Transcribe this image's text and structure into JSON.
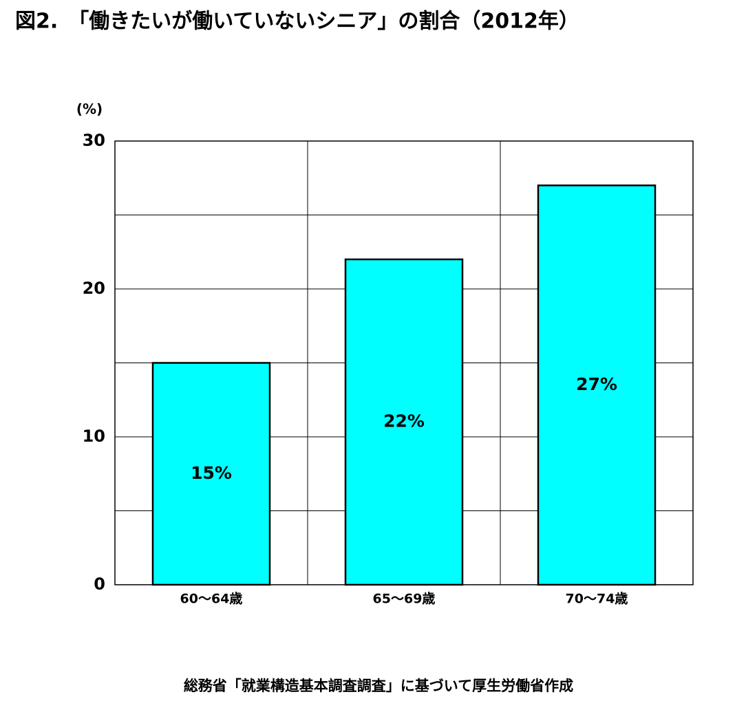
{
  "chart_data": {
    "type": "bar",
    "title": "図2.　「働きたいが働いていないシニア」の割合（2012年）",
    "y_axis_label": "(%)",
    "source": "総務省「就業構造基本調査調査」に基づいて厚生労働省作成",
    "categories": [
      "60～64歳",
      "65～69歳",
      "70～74歳"
    ],
    "values": [
      15,
      22,
      27
    ],
    "value_labels": [
      "15%",
      "22%",
      "27%"
    ],
    "color": "#00ffff",
    "ylim": [
      0,
      30
    ],
    "yticks": [
      0,
      10,
      20,
      30
    ],
    "minor_yticks": [
      5,
      15,
      25
    ],
    "grid": true
  }
}
